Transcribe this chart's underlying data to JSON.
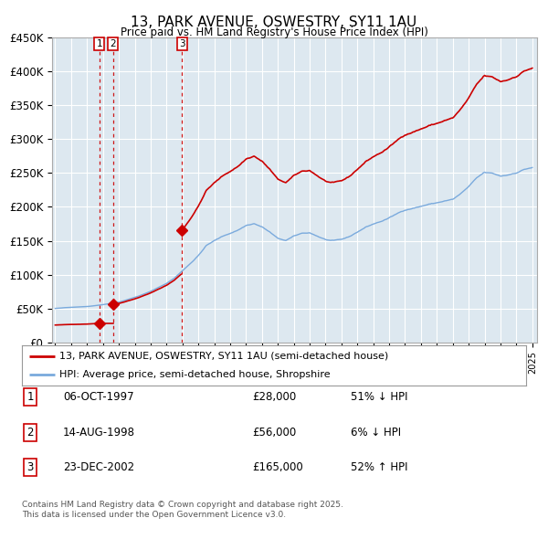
{
  "title": "13, PARK AVENUE, OSWESTRY, SY11 1AU",
  "subtitle": "Price paid vs. HM Land Registry's House Price Index (HPI)",
  "legend_line1": "13, PARK AVENUE, OSWESTRY, SY11 1AU (semi-detached house)",
  "legend_line2": "HPI: Average price, semi-detached house, Shropshire",
  "footer1": "Contains HM Land Registry data © Crown copyright and database right 2025.",
  "footer2": "This data is licensed under the Open Government Licence v3.0.",
  "transactions": [
    {
      "num": 1,
      "date": "06-OCT-1997",
      "price": 28000,
      "pct": "51%",
      "dir": "↓",
      "year": 1997.77
    },
    {
      "num": 2,
      "date": "14-AUG-1998",
      "price": 56000,
      "pct": "6%",
      "dir": "↓",
      "year": 1998.62
    },
    {
      "num": 3,
      "date": "23-DEC-2002",
      "price": 165000,
      "pct": "52%",
      "dir": "↑",
      "year": 2002.98
    }
  ],
  "ylim": [
    0,
    450000
  ],
  "yticks": [
    0,
    50000,
    100000,
    150000,
    200000,
    250000,
    300000,
    350000,
    400000,
    450000
  ],
  "ytick_labels": [
    "£0",
    "£50K",
    "£100K",
    "£150K",
    "£200K",
    "£250K",
    "£300K",
    "£350K",
    "£400K",
    "£450K"
  ],
  "xlim_start": 1994.8,
  "xlim_end": 2025.3,
  "property_color": "#cc0000",
  "hpi_color": "#7aaadd",
  "chart_bg_color": "#dde8f0",
  "background_color": "#ffffff",
  "grid_color": "#ffffff"
}
